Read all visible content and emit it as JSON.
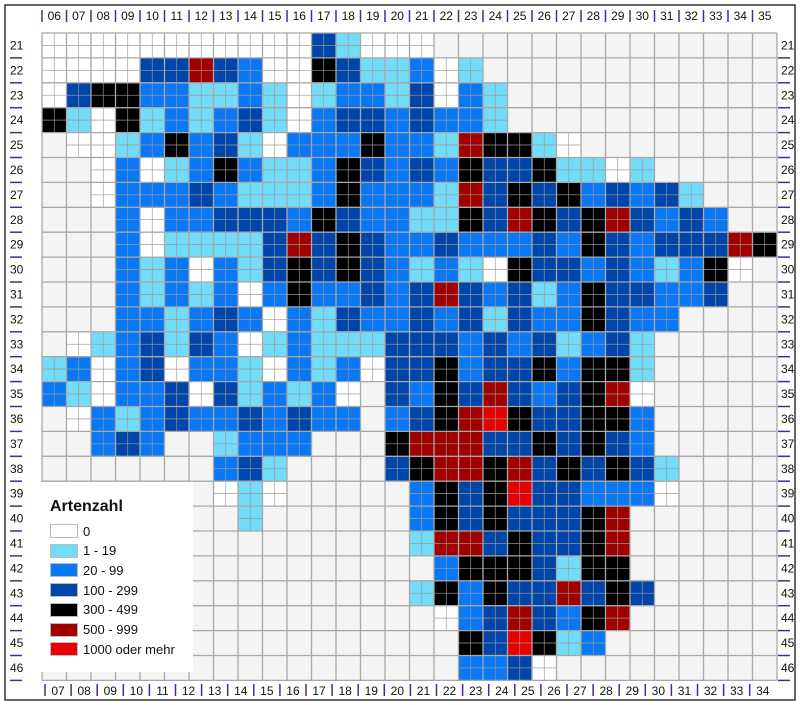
{
  "map": {
    "columns_top": [
      "06",
      "07",
      "08",
      "09",
      "10",
      "11",
      "12",
      "13",
      "14",
      "15",
      "16",
      "17",
      "18",
      "19",
      "20",
      "21",
      "22",
      "23",
      "24",
      "25",
      "26",
      "27",
      "28",
      "29",
      "30",
      "31",
      "32",
      "33",
      "34",
      "35"
    ],
    "columns_bottom": [
      "07",
      "08",
      "09",
      "10",
      "11",
      "12",
      "13",
      "14",
      "15",
      "16",
      "17",
      "18",
      "19",
      "20",
      "21",
      "22",
      "23",
      "24",
      "25",
      "26",
      "27",
      "28",
      "29",
      "30",
      "31",
      "32",
      "33",
      "34"
    ],
    "rows": [
      "21",
      "22",
      "23",
      "24",
      "25",
      "26",
      "27",
      "28",
      "29",
      "30",
      "31",
      "32",
      "33",
      "34",
      "35",
      "36",
      "37",
      "38",
      "39",
      "40",
      "41",
      "42",
      "43",
      "44",
      "45",
      "46"
    ],
    "cell_codes_note_legend_index": "",
    "grid": [
      "0000000000031000..............",
      "00003353200431120 1...........",
      "034422112101221302 1...........",
      "4104121231023323221...........",
      ".001242310222422154410........",
      "..02012421124323243341101.....",
      "..022232111242221534342323 1...",
      "...20223332432211435434532 32..",
      "...2011113534322322232432333 54",
      "...2120213434321210433232124 0",
      "...212120242232353231243322 3..",
      "...2212320213223231322432 2....",
      ".0123132012111333232312 31.....",
      "120230221021203342334244 1.....",
      "2102230312120.32435323 45 0.....",
      ".0212322323 22.23456433 44 2.....",
      "..232..1222...45553343432.....",
      ".......231....34554534343 1....",
      ".......010.....2434633222 0....",
      "........1......243433345......",
      "...............155343345......",
      "................24443144......",
      "...............1424335343.....",
      "................02353245......",
      ".................436412.......",
      ".................2230........."
    ]
  },
  "legend": {
    "title": "Artenzahl",
    "classes": [
      {
        "label": "0",
        "color": "#ffffff"
      },
      {
        "label": "1 - 19",
        "color": "#73dcf8"
      },
      {
        "label": "20 - 99",
        "color": "#0a78f5"
      },
      {
        "label": "100 - 299",
        "color": "#0046aa"
      },
      {
        "label": "300 - 499",
        "color": "#000000"
      },
      {
        "label": "500 - 999",
        "color": "#a00000"
      },
      {
        "label": "1000 oder mehr",
        "color": "#e60000"
      }
    ]
  },
  "colors": {
    "outside": "#f4f4f4",
    "grid": "#a8a8a8",
    "tick": "#5a1e9e"
  }
}
